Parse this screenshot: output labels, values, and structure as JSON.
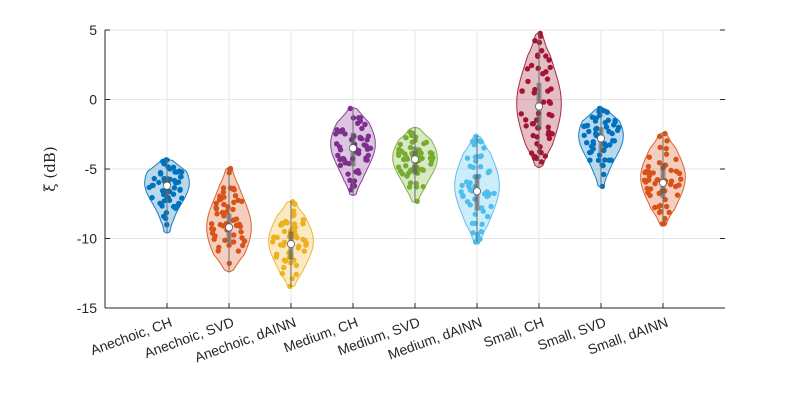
{
  "chart_data": {
    "type": "violin",
    "ylabel": "ξ (dB)",
    "ylim": [
      -15,
      5
    ],
    "yticks": [
      5,
      0,
      -5,
      -10,
      -15
    ],
    "grid": true,
    "categories": [
      "Anechoic, CH",
      "Anechoic, SVD",
      "Anechoic, dAINN",
      "Medium, CH",
      "Medium, SVD",
      "Medium, dAINN",
      "Small, CH",
      "Small, SVD",
      "Small, dAINN"
    ],
    "series": [
      {
        "color": "#0072BD",
        "min": -9.6,
        "max": -4.3,
        "median": -6.2,
        "q1": -7.0,
        "q3": -5.5,
        "mode": -6.0
      },
      {
        "color": "#D95319",
        "min": -12.4,
        "max": -4.9,
        "median": -9.2,
        "q1": -10.3,
        "q3": -8.2,
        "mode": -9.2
      },
      {
        "color": "#EDB120",
        "min": -13.5,
        "max": -7.3,
        "median": -10.4,
        "q1": -11.5,
        "q3": -9.5,
        "mode": -10.2
      },
      {
        "color": "#7E2F8E",
        "min": -6.9,
        "max": -0.6,
        "median": -3.5,
        "q1": -4.8,
        "q3": -2.4,
        "mode": -3.2
      },
      {
        "color": "#77AC30",
        "min": -7.4,
        "max": -2.0,
        "median": -4.3,
        "q1": -5.4,
        "q3": -3.4,
        "mode": -4.2
      },
      {
        "color": "#4DBEEE",
        "min": -10.3,
        "max": -2.6,
        "median": -6.6,
        "q1": -8.0,
        "q3": -5.4,
        "mode": -6.2
      },
      {
        "color": "#A2142F",
        "min": -4.9,
        "max": 4.8,
        "median": -0.5,
        "q1": -2.1,
        "q3": 1.2,
        "mode": -0.3
      },
      {
        "color": "#0072BD",
        "min": -6.3,
        "max": -0.6,
        "median": -2.8,
        "q1": -3.8,
        "q3": -2.0,
        "mode": -2.6
      },
      {
        "color": "#D95319",
        "min": -9.0,
        "max": -2.4,
        "median": -6.0,
        "q1": -7.1,
        "q3": -4.6,
        "mode": -5.6
      }
    ]
  }
}
